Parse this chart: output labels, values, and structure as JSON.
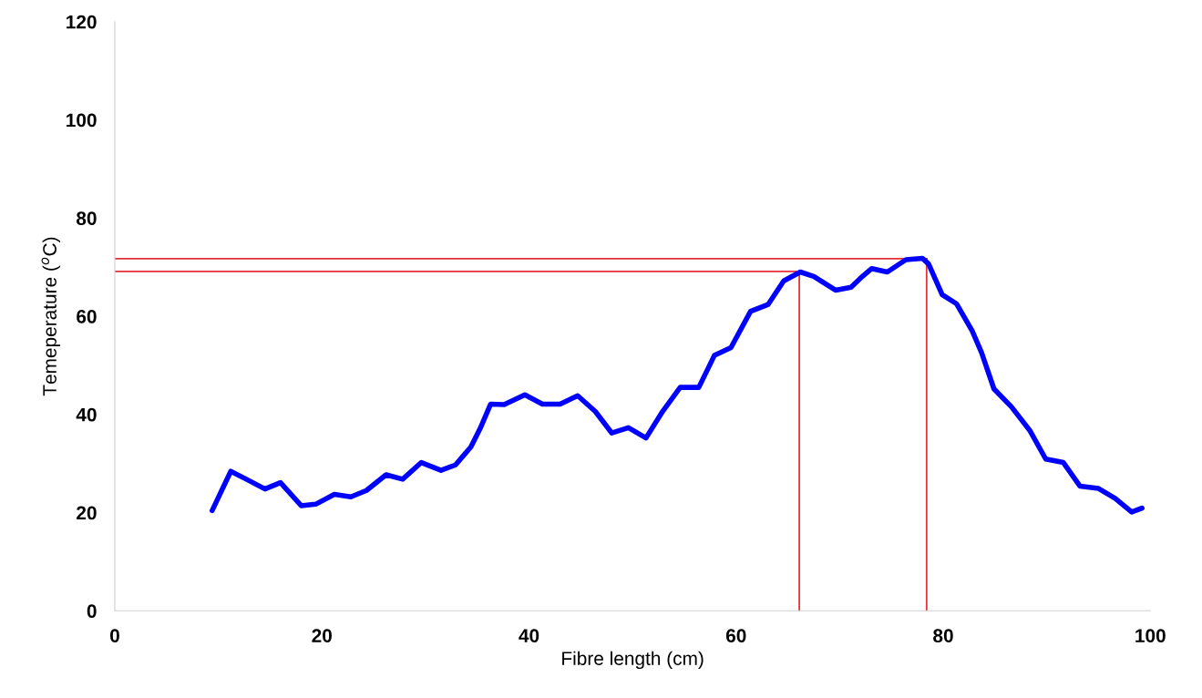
{
  "chart_data": {
    "type": "line",
    "xlabel": "Fibre length (cm)",
    "ylabel": "Temeperature ($^{o}$C)",
    "xlim": [
      0,
      100
    ],
    "xticks": [
      0,
      20,
      40,
      60,
      80,
      100
    ],
    "ylim": [
      0,
      120
    ],
    "yticks": [
      0,
      20,
      40,
      60,
      80,
      100,
      120
    ],
    "grid": false,
    "legend": false,
    "marker": "none",
    "line_style": "solid",
    "series": [
      {
        "color": "#0000ff",
        "x": [
          9.4,
          11.2,
          12.7,
          14.5,
          16.0,
          18.0,
          19.4,
          21.2,
          22.8,
          24.3,
          26.2,
          27.8,
          29.6,
          31.5,
          32.9,
          34.4,
          35.3,
          36.3,
          37.6,
          39.6,
          41.3,
          43.0,
          44.7,
          46.4,
          48.0,
          49.6,
          51.3,
          52.9,
          54.6,
          56.4,
          57.9,
          59.5,
          61.4,
          63.1,
          64.6,
          66.2,
          67.5,
          69.6,
          71.1,
          72.2,
          73.1,
          74.6,
          76.4,
          78.0,
          78.6,
          79.9,
          81.3,
          82.8,
          83.7,
          84.9,
          86.6,
          88.4,
          89.9,
          91.6,
          93.2,
          95.0,
          96.6,
          98.2,
          99.2
        ],
        "values": [
          20.4,
          28.4,
          26.8,
          24.8,
          26.1,
          21.4,
          21.7,
          23.7,
          23.2,
          24.5,
          27.7,
          26.8,
          30.2,
          28.6,
          29.7,
          33.4,
          37.2,
          42.1,
          42.0,
          44.0,
          42.1,
          42.1,
          43.8,
          40.6,
          36.2,
          37.3,
          35.2,
          40.6,
          45.5,
          45.5,
          52.0,
          53.6,
          61.0,
          62.4,
          67.2,
          69.0,
          68.1,
          65.3,
          65.9,
          68.1,
          69.7,
          69.0,
          71.5,
          71.8,
          70.6,
          64.4,
          62.5,
          57.0,
          52.6,
          45.2,
          41.5,
          36.6,
          30.9,
          30.2,
          25.4,
          24.9,
          22.9,
          20.1,
          20.9
        ]
      }
    ],
    "ref_lines": [
      {
        "axis": "y",
        "value": 69.1,
        "color": "#e8303c"
      },
      {
        "axis": "y",
        "value": 71.7,
        "color": "#e8303c"
      },
      {
        "axis": "x",
        "value": 66.1,
        "color": "#e8303c"
      },
      {
        "axis": "x",
        "value": 78.4,
        "color": "#e8303c"
      }
    ]
  }
}
